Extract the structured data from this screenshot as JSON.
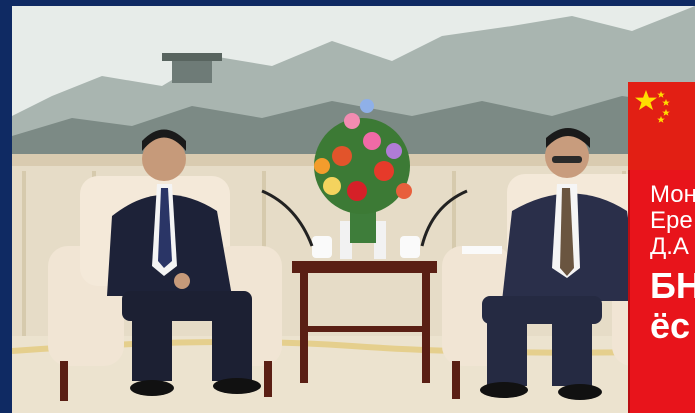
{
  "overlay": {
    "lines": [
      "Мон",
      "Ере",
      "Д.А",
      "БН",
      "ёс"
    ]
  },
  "icons": {
    "flag": "china-flag-stars-icon"
  },
  "colors": {
    "border_blue": "#0f2a63",
    "banner_red": "#e8141b"
  }
}
